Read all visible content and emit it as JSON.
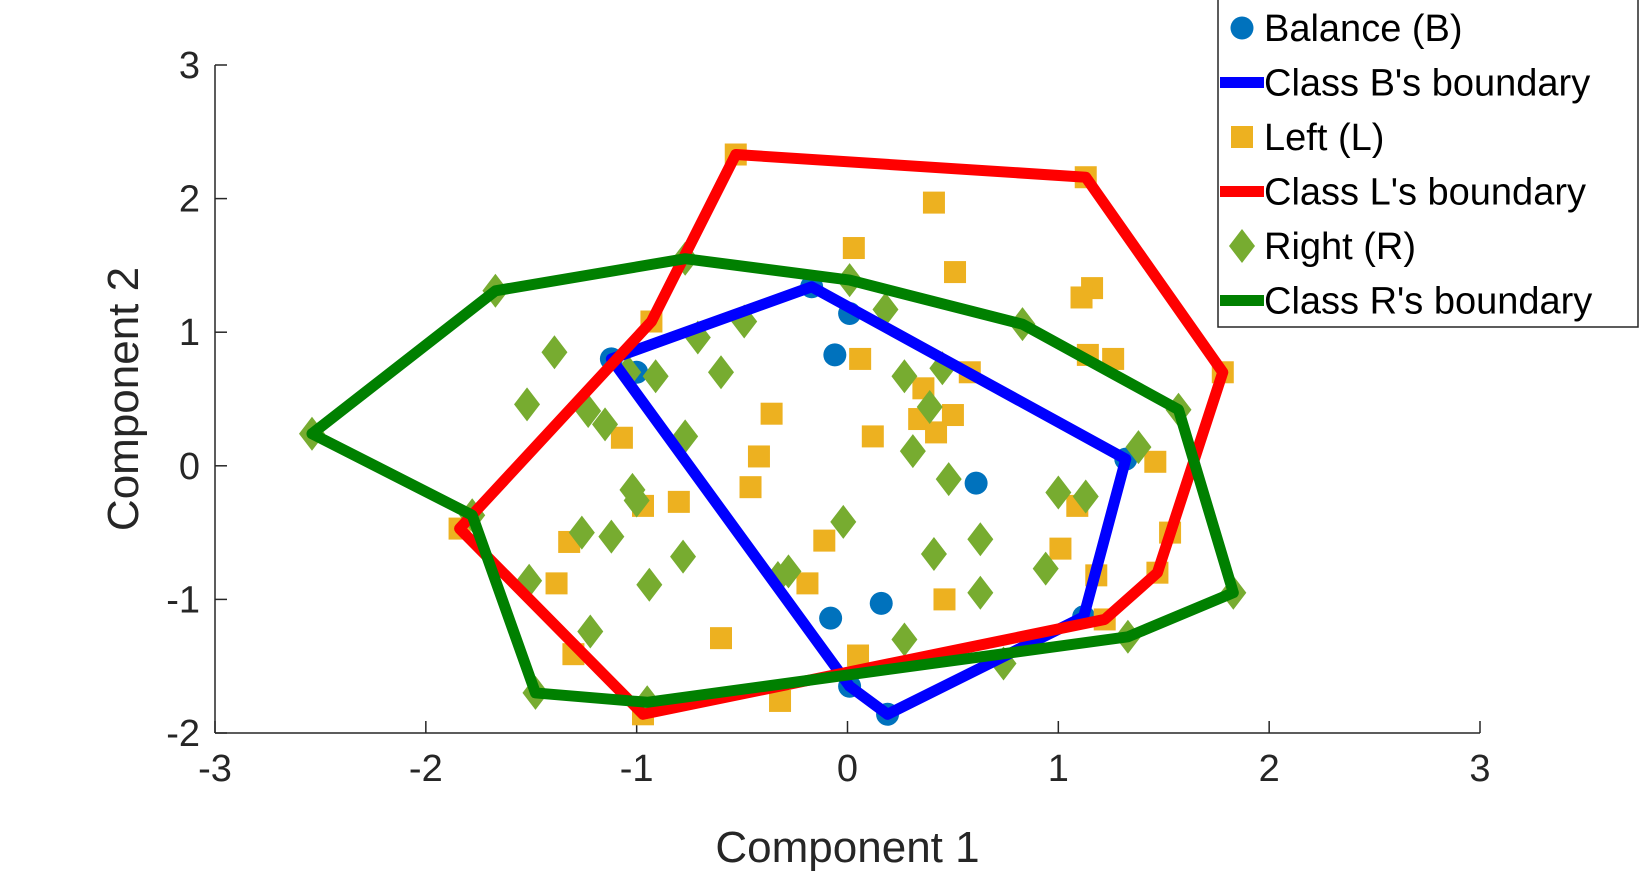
{
  "chart_data": {
    "type": "scatter",
    "xlabel": "Component 1",
    "ylabel": "Component 2",
    "xlim": [
      -3,
      3
    ],
    "ylim": [
      -2,
      3
    ],
    "xticks": [
      -3,
      -2,
      -1,
      0,
      1,
      2,
      3
    ],
    "yticks": [
      -2,
      -1,
      0,
      1,
      2,
      3
    ],
    "grid": false,
    "legend_position": "top-right",
    "series": [
      {
        "name": "Balance (B)",
        "kind": "points",
        "marker": "circle",
        "color": "#0072BD",
        "points": [
          [
            -1.12,
            0.8
          ],
          [
            -0.17,
            1.34
          ],
          [
            0.01,
            1.14
          ],
          [
            -0.06,
            0.83
          ],
          [
            0.61,
            -0.13
          ],
          [
            0.16,
            -1.03
          ],
          [
            -0.08,
            -1.14
          ],
          [
            0.01,
            -1.65
          ],
          [
            0.19,
            -1.86
          ],
          [
            1.12,
            -1.13
          ],
          [
            1.32,
            0.05
          ],
          [
            -1.0,
            0.7
          ]
        ]
      },
      {
        "name": "Class B's boundary",
        "kind": "line",
        "color": "#0000FF",
        "points": [
          [
            -1.12,
            0.8
          ],
          [
            -0.17,
            1.34
          ],
          [
            1.32,
            0.05
          ],
          [
            1.12,
            -1.13
          ],
          [
            0.19,
            -1.86
          ],
          [
            0.01,
            -1.65
          ],
          [
            -1.12,
            0.8
          ]
        ]
      },
      {
        "name": "Left (L)",
        "kind": "points",
        "marker": "square",
        "color": "#EDB120",
        "points": [
          [
            -0.53,
            2.33
          ],
          [
            1.13,
            2.16
          ],
          [
            0.41,
            1.97
          ],
          [
            0.03,
            1.63
          ],
          [
            0.51,
            1.45
          ],
          [
            1.16,
            1.33
          ],
          [
            1.11,
            1.26
          ],
          [
            -0.93,
            1.08
          ],
          [
            1.14,
            0.83
          ],
          [
            1.26,
            0.8
          ],
          [
            0.06,
            0.8
          ],
          [
            0.58,
            0.7
          ],
          [
            1.78,
            0.7
          ],
          [
            0.36,
            0.58
          ],
          [
            -0.36,
            0.39
          ],
          [
            0.34,
            0.35
          ],
          [
            0.5,
            0.38
          ],
          [
            0.42,
            0.25
          ],
          [
            0.12,
            0.22
          ],
          [
            -1.07,
            0.21
          ],
          [
            -0.42,
            0.07
          ],
          [
            1.46,
            0.03
          ],
          [
            -0.46,
            -0.16
          ],
          [
            -0.97,
            -0.3
          ],
          [
            -0.8,
            -0.27
          ],
          [
            1.09,
            -0.3
          ],
          [
            -1.84,
            -0.47
          ],
          [
            -1.32,
            -0.57
          ],
          [
            -0.11,
            -0.56
          ],
          [
            1.01,
            -0.62
          ],
          [
            1.53,
            -0.5
          ],
          [
            1.47,
            -0.8
          ],
          [
            1.18,
            -0.82
          ],
          [
            -1.38,
            -0.88
          ],
          [
            -0.19,
            -0.88
          ],
          [
            0.46,
            -1.0
          ],
          [
            1.22,
            -1.15
          ],
          [
            -0.6,
            -1.29
          ],
          [
            0.05,
            -1.42
          ],
          [
            -1.3,
            -1.41
          ],
          [
            -0.32,
            -1.76
          ],
          [
            -0.97,
            -1.86
          ]
        ]
      },
      {
        "name": "Class L's boundary",
        "kind": "line",
        "color": "#FF0000",
        "points": [
          [
            -0.53,
            2.33
          ],
          [
            1.13,
            2.16
          ],
          [
            1.78,
            0.7
          ],
          [
            1.47,
            -0.8
          ],
          [
            1.22,
            -1.15
          ],
          [
            -0.97,
            -1.86
          ],
          [
            -1.84,
            -0.47
          ],
          [
            -0.93,
            1.08
          ],
          [
            -0.53,
            2.33
          ]
        ]
      },
      {
        "name": "Right (R)",
        "kind": "points",
        "marker": "diamond",
        "color": "#77AC30",
        "points": [
          [
            -1.67,
            1.31
          ],
          [
            -0.77,
            1.55
          ],
          [
            0.01,
            1.39
          ],
          [
            0.18,
            1.17
          ],
          [
            -0.49,
            1.08
          ],
          [
            -0.71,
            0.96
          ],
          [
            0.83,
            1.06
          ],
          [
            -1.39,
            0.85
          ],
          [
            -0.91,
            0.67
          ],
          [
            -1.04,
            0.7
          ],
          [
            -0.6,
            0.7
          ],
          [
            0.27,
            0.67
          ],
          [
            0.45,
            0.73
          ],
          [
            -1.52,
            0.46
          ],
          [
            -1.23,
            0.41
          ],
          [
            -1.15,
            0.31
          ],
          [
            0.39,
            0.44
          ],
          [
            -0.77,
            0.22
          ],
          [
            -2.54,
            0.24
          ],
          [
            1.57,
            0.42
          ],
          [
            1.38,
            0.14
          ],
          [
            0.31,
            0.11
          ],
          [
            0.48,
            -0.1
          ],
          [
            -1.02,
            -0.18
          ],
          [
            -1.0,
            -0.26
          ],
          [
            1.0,
            -0.2
          ],
          [
            1.13,
            -0.23
          ],
          [
            -1.78,
            -0.37
          ],
          [
            -0.02,
            -0.42
          ],
          [
            -1.26,
            -0.5
          ],
          [
            -1.12,
            -0.53
          ],
          [
            0.63,
            -0.55
          ],
          [
            0.41,
            -0.66
          ],
          [
            -0.78,
            -0.68
          ],
          [
            -0.28,
            -0.79
          ],
          [
            -0.33,
            -0.84
          ],
          [
            0.94,
            -0.77
          ],
          [
            -1.51,
            -0.86
          ],
          [
            -0.94,
            -0.89
          ],
          [
            0.63,
            -0.95
          ],
          [
            1.83,
            -0.95
          ],
          [
            -1.22,
            -1.24
          ],
          [
            0.27,
            -1.3
          ],
          [
            1.33,
            -1.28
          ],
          [
            0.74,
            -1.48
          ],
          [
            -1.48,
            -1.7
          ],
          [
            -0.95,
            -1.77
          ]
        ]
      },
      {
        "name": "Class R's boundary",
        "kind": "line",
        "color": "#008000",
        "points": [
          [
            -2.54,
            0.24
          ],
          [
            -1.67,
            1.31
          ],
          [
            -0.77,
            1.55
          ],
          [
            0.01,
            1.39
          ],
          [
            0.83,
            1.06
          ],
          [
            1.57,
            0.42
          ],
          [
            1.83,
            -0.95
          ],
          [
            1.33,
            -1.28
          ],
          [
            -0.95,
            -1.77
          ],
          [
            -1.48,
            -1.7
          ],
          [
            -1.78,
            -0.37
          ],
          [
            -2.54,
            0.24
          ]
        ]
      }
    ]
  }
}
